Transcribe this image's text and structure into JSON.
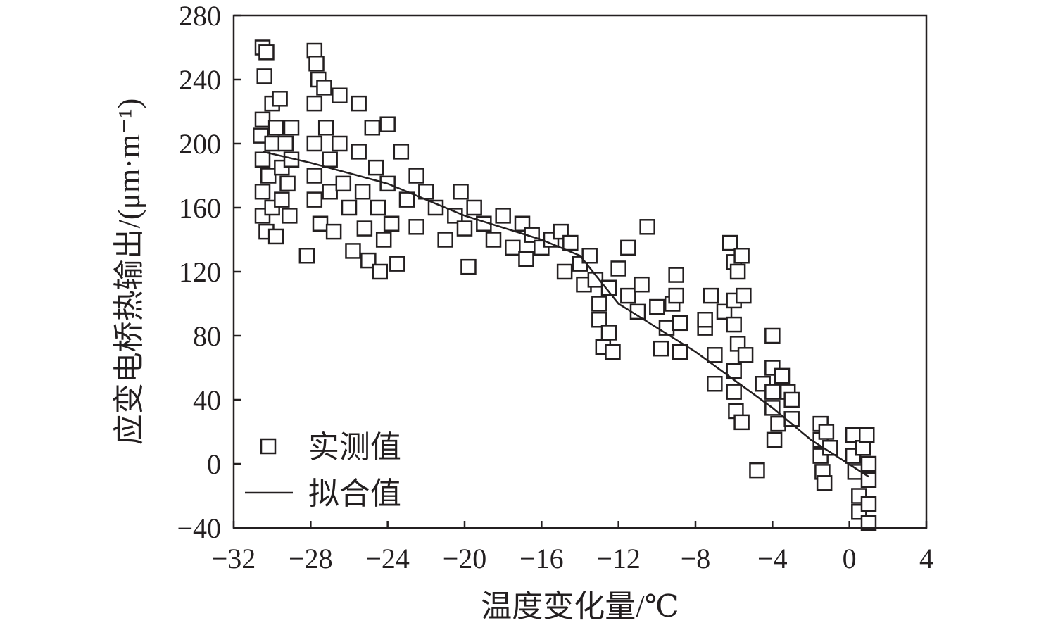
{
  "chart_data": {
    "type": "scatter",
    "title": "",
    "xlabel": "温度变化量/℃",
    "ylabel": "应变电桥热输出/(μm·m⁻¹)",
    "xlim": [
      -32,
      4
    ],
    "ylim": [
      -40,
      280
    ],
    "x_ticks": [
      -32,
      -28,
      -24,
      -20,
      -16,
      -12,
      -8,
      -4,
      0,
      4
    ],
    "y_ticks": [
      -40,
      0,
      40,
      80,
      120,
      160,
      200,
      240,
      280
    ],
    "x_tick_labels": [
      "−32",
      "−28",
      "−24",
      "−20",
      "−16",
      "−12",
      "−8",
      "−4",
      "0",
      "4"
    ],
    "y_tick_labels": [
      "−40",
      "0",
      "40",
      "80",
      "120",
      "160",
      "200",
      "240",
      "280"
    ],
    "grid": false,
    "legend_position": "bottom-left",
    "legend": [
      "实测值",
      "拟合值"
    ],
    "series": [
      {
        "name": "实测值",
        "kind": "scatter",
        "marker": "open-square",
        "points": [
          [
            -30.6,
            205
          ],
          [
            -30.5,
            260
          ],
          [
            -30.3,
            257
          ],
          [
            -30.4,
            242
          ],
          [
            -30.5,
            215
          ],
          [
            -30.5,
            190
          ],
          [
            -30.5,
            170
          ],
          [
            -30.5,
            155
          ],
          [
            -30.3,
            145
          ],
          [
            -30.2,
            180
          ],
          [
            -30.0,
            225
          ],
          [
            -30.0,
            200
          ],
          [
            -30.0,
            160
          ],
          [
            -29.8,
            142
          ],
          [
            -29.8,
            210
          ],
          [
            -29.6,
            228
          ],
          [
            -29.5,
            185
          ],
          [
            -29.5,
            165
          ],
          [
            -29.3,
            200
          ],
          [
            -29.2,
            175
          ],
          [
            -29.1,
            155
          ],
          [
            -29.0,
            210
          ],
          [
            -29.0,
            190
          ],
          [
            -28.2,
            130
          ],
          [
            -27.8,
            258
          ],
          [
            -27.7,
            250
          ],
          [
            -27.6,
            240
          ],
          [
            -27.8,
            225
          ],
          [
            -27.8,
            200
          ],
          [
            -27.8,
            180
          ],
          [
            -27.8,
            165
          ],
          [
            -27.5,
            150
          ],
          [
            -27.3,
            235
          ],
          [
            -27.2,
            210
          ],
          [
            -27.0,
            190
          ],
          [
            -27.0,
            170
          ],
          [
            -26.8,
            145
          ],
          [
            -26.5,
            230
          ],
          [
            -26.5,
            200
          ],
          [
            -26.3,
            175
          ],
          [
            -26.0,
            160
          ],
          [
            -25.8,
            133
          ],
          [
            -25.5,
            225
          ],
          [
            -25.5,
            195
          ],
          [
            -25.3,
            170
          ],
          [
            -25.2,
            147
          ],
          [
            -25.0,
            127
          ],
          [
            -24.8,
            210
          ],
          [
            -24.6,
            185
          ],
          [
            -24.5,
            160
          ],
          [
            -24.4,
            120
          ],
          [
            -24.2,
            140
          ],
          [
            -24.0,
            212
          ],
          [
            -24.0,
            175
          ],
          [
            -23.8,
            150
          ],
          [
            -23.5,
            125
          ],
          [
            -23.3,
            195
          ],
          [
            -23.0,
            165
          ],
          [
            -22.5,
            180
          ],
          [
            -22.5,
            148
          ],
          [
            -22.0,
            170
          ],
          [
            -21.5,
            160
          ],
          [
            -21.0,
            140
          ],
          [
            -20.5,
            155
          ],
          [
            -20.2,
            170
          ],
          [
            -20.0,
            147
          ],
          [
            -19.8,
            123
          ],
          [
            -19.5,
            160
          ],
          [
            -19.0,
            150
          ],
          [
            -18.5,
            140
          ],
          [
            -18.0,
            155
          ],
          [
            -17.5,
            135
          ],
          [
            -17.0,
            150
          ],
          [
            -16.8,
            128
          ],
          [
            -16.5,
            143
          ],
          [
            -16.0,
            135
          ],
          [
            -15.5,
            140
          ],
          [
            -15.0,
            145
          ],
          [
            -14.8,
            120
          ],
          [
            -14.5,
            138
          ],
          [
            -14.0,
            125
          ],
          [
            -13.8,
            112
          ],
          [
            -13.5,
            130
          ],
          [
            -13.2,
            115
          ],
          [
            -13.0,
            100
          ],
          [
            -13.0,
            90
          ],
          [
            -12.8,
            73
          ],
          [
            -12.5,
            110
          ],
          [
            -12.5,
            82
          ],
          [
            -12.3,
            70
          ],
          [
            -12.0,
            122
          ],
          [
            -11.5,
            135
          ],
          [
            -11.5,
            105
          ],
          [
            -11.0,
            95
          ],
          [
            -10.8,
            112
          ],
          [
            -10.5,
            148
          ],
          [
            -10.0,
            98
          ],
          [
            -9.8,
            72
          ],
          [
            -9.5,
            85
          ],
          [
            -9.2,
            100
          ],
          [
            -9.0,
            118
          ],
          [
            -9.0,
            105
          ],
          [
            -8.8,
            70
          ],
          [
            -8.8,
            88
          ],
          [
            -7.5,
            85
          ],
          [
            -7.5,
            90
          ],
          [
            -7.2,
            105
          ],
          [
            -7.0,
            68
          ],
          [
            -7.0,
            50
          ],
          [
            -6.5,
            95
          ],
          [
            -6.2,
            138
          ],
          [
            -6.0,
            126
          ],
          [
            -6.0,
            102
          ],
          [
            -6.0,
            87
          ],
          [
            -5.8,
            120
          ],
          [
            -5.8,
            75
          ],
          [
            -5.6,
            130
          ],
          [
            -5.5,
            105
          ],
          [
            -6.0,
            58
          ],
          [
            -6.0,
            45
          ],
          [
            -5.9,
            33
          ],
          [
            -5.6,
            26
          ],
          [
            -5.4,
            68
          ],
          [
            -4.8,
            -4
          ],
          [
            -4.5,
            50
          ],
          [
            -4.0,
            80
          ],
          [
            -4.0,
            60
          ],
          [
            -4.0,
            45
          ],
          [
            -4.0,
            35
          ],
          [
            -3.9,
            15
          ],
          [
            -3.7,
            25
          ],
          [
            -3.5,
            55
          ],
          [
            -3.2,
            45
          ],
          [
            -3.0,
            40
          ],
          [
            -3.0,
            28
          ],
          [
            -1.5,
            25
          ],
          [
            -1.5,
            15
          ],
          [
            -1.5,
            5
          ],
          [
            -1.4,
            -5
          ],
          [
            -1.3,
            -12
          ],
          [
            -1.2,
            20
          ],
          [
            -1.0,
            10
          ],
          [
            0.2,
            18
          ],
          [
            0.2,
            5
          ],
          [
            0.3,
            -5
          ],
          [
            0.5,
            -20
          ],
          [
            0.5,
            -30
          ],
          [
            0.7,
            10
          ],
          [
            0.9,
            18
          ],
          [
            1.0,
            0
          ],
          [
            1.0,
            -10
          ],
          [
            1.0,
            -25
          ],
          [
            1.0,
            -37
          ]
        ]
      },
      {
        "name": "拟合值",
        "kind": "line",
        "points": [
          [
            -30.5,
            195
          ],
          [
            -28,
            188
          ],
          [
            -24,
            175
          ],
          [
            -20,
            155
          ],
          [
            -16,
            140
          ],
          [
            -14,
            130
          ],
          [
            -12,
            100
          ],
          [
            -8,
            70
          ],
          [
            -4,
            35
          ],
          [
            -2,
            15
          ],
          [
            1,
            -8
          ]
        ]
      }
    ]
  }
}
